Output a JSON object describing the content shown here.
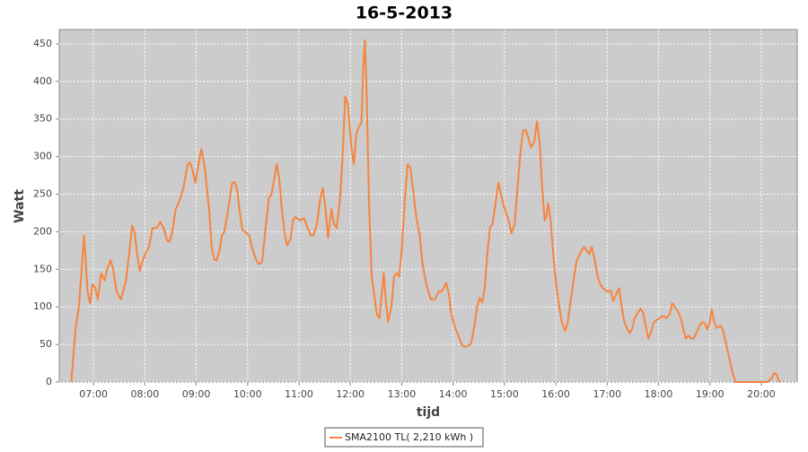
{
  "chart_data": {
    "type": "line",
    "title": "16-5-2013",
    "x_label": "tijd",
    "y_label": "Watt",
    "x": [
      "06:34",
      "06:39",
      "06:43",
      "06:49",
      "06:53",
      "06:56",
      "06:59",
      "07:02",
      "07:05",
      "07:09",
      "07:13",
      "07:16",
      "07:20",
      "07:23",
      "07:27",
      "07:32",
      "07:38",
      "07:42",
      "07:45",
      "07:48",
      "07:51",
      "07:54",
      "07:57",
      "08:01",
      "08:05",
      "08:09",
      "08:14",
      "08:18",
      "08:22",
      "08:26",
      "08:29",
      "08:32",
      "08:36",
      "08:40",
      "08:45",
      "08:50",
      "08:53",
      "08:56",
      "08:59",
      "09:03",
      "09:06",
      "09:10",
      "09:15",
      "09:18",
      "09:21",
      "09:24",
      "09:27",
      "09:30",
      "09:33",
      "09:38",
      "09:42",
      "09:45",
      "09:48",
      "09:51",
      "09:54",
      "09:57",
      "10:02",
      "10:05",
      "10:09",
      "10:13",
      "10:17",
      "10:21",
      "10:25",
      "10:28",
      "10:31",
      "10:34",
      "10:37",
      "10:40",
      "10:43",
      "10:46",
      "10:50",
      "10:53",
      "10:56",
      "11:01",
      "11:06",
      "11:10",
      "11:14",
      "11:17",
      "11:21",
      "11:25",
      "11:28",
      "11:31",
      "11:34",
      "11:38",
      "11:41",
      "11:44",
      "11:48",
      "11:51",
      "11:54",
      "11:57",
      "12:01",
      "12:04",
      "12:07",
      "12:10",
      "12:13",
      "12:15",
      "12:17",
      "12:19",
      "12:22",
      "12:25",
      "12:28",
      "12:31",
      "12:34",
      "12:37",
      "12:39",
      "12:41",
      "12:44",
      "12:48",
      "12:51",
      "12:54",
      "12:57",
      "13:00",
      "13:04",
      "13:07",
      "13:10",
      "13:14",
      "13:17",
      "13:21",
      "13:24",
      "13:27",
      "13:30",
      "13:34",
      "13:39",
      "13:43",
      "13:46",
      "13:49",
      "13:52",
      "13:55",
      "13:58",
      "14:03",
      "14:07",
      "14:10",
      "14:13",
      "14:18",
      "14:21",
      "14:25",
      "14:28",
      "14:31",
      "14:34",
      "14:37",
      "14:40",
      "14:43",
      "14:46",
      "14:50",
      "14:53",
      "14:56",
      "14:59",
      "15:02",
      "15:05",
      "15:08",
      "15:12",
      "15:15",
      "15:19",
      "15:22",
      "15:25",
      "15:28",
      "15:31",
      "15:35",
      "15:38",
      "15:41",
      "15:44",
      "15:47",
      "15:49",
      "15:51",
      "15:54",
      "15:57",
      "16:01",
      "16:04",
      "16:07",
      "16:11",
      "16:14",
      "16:17",
      "16:20",
      "16:24",
      "16:27",
      "16:30",
      "16:33",
      "16:36",
      "16:39",
      "16:42",
      "16:45",
      "16:49",
      "16:52",
      "16:55",
      "16:58",
      "17:01",
      "17:04",
      "17:07",
      "17:11",
      "17:14",
      "17:17",
      "17:20",
      "17:23",
      "17:26",
      "17:29",
      "17:32",
      "17:36",
      "17:39",
      "17:42",
      "17:45",
      "17:48",
      "17:51",
      "17:54",
      "17:57",
      "18:01",
      "18:05",
      "18:09",
      "18:13",
      "18:16",
      "18:19",
      "18:22",
      "18:26",
      "18:29",
      "18:32",
      "18:35",
      "18:38",
      "18:41",
      "18:44",
      "18:48",
      "18:51",
      "18:54",
      "18:57",
      "19:00",
      "19:02",
      "19:05",
      "19:08",
      "19:12",
      "19:15",
      "19:18",
      "19:21",
      "19:24",
      "19:27",
      "19:30",
      "19:53",
      "20:07",
      "20:12",
      "20:15",
      "20:18",
      "20:21"
    ],
    "series": [
      {
        "name": "SMA2100 TL( 2,210 kWh )",
        "color": "#f7843f",
        "values": [
          0,
          70,
          100,
          195,
          120,
          105,
          130,
          125,
          110,
          145,
          135,
          150,
          162,
          150,
          120,
          110,
          135,
          175,
          208,
          200,
          170,
          148,
          160,
          172,
          180,
          205,
          205,
          213,
          205,
          188,
          187,
          200,
          230,
          240,
          258,
          290,
          292,
          280,
          265,
          292,
          310,
          285,
          230,
          180,
          163,
          162,
          175,
          195,
          200,
          235,
          265,
          266,
          255,
          225,
          202,
          200,
          195,
          180,
          165,
          157,
          160,
          205,
          245,
          250,
          270,
          290,
          270,
          230,
          200,
          182,
          190,
          215,
          220,
          215,
          218,
          205,
          195,
          195,
          210,
          245,
          258,
          230,
          192,
          230,
          210,
          205,
          245,
          300,
          380,
          370,
          315,
          290,
          330,
          340,
          345,
          415,
          455,
          390,
          230,
          140,
          115,
          90,
          85,
          120,
          145,
          115,
          80,
          100,
          140,
          145,
          140,
          175,
          250,
          290,
          285,
          250,
          220,
          195,
          160,
          140,
          125,
          110,
          110,
          120,
          120,
          125,
          132,
          118,
          90,
          70,
          60,
          50,
          47,
          48,
          52,
          75,
          100,
          112,
          106,
          125,
          170,
          205,
          210,
          240,
          265,
          250,
          235,
          225,
          215,
          198,
          210,
          255,
          310,
          335,
          335,
          325,
          312,
          320,
          347,
          320,
          260,
          215,
          220,
          238,
          215,
          170,
          125,
          100,
          80,
          68,
          80,
          105,
          130,
          160,
          168,
          175,
          180,
          175,
          170,
          180,
          165,
          140,
          130,
          125,
          122,
          120,
          122,
          108,
          118,
          125,
          100,
          80,
          72,
          65,
          70,
          85,
          92,
          98,
          92,
          75,
          58,
          65,
          78,
          82,
          85,
          88,
          85,
          90,
          105,
          100,
          95,
          85,
          70,
          58,
          62,
          58,
          58,
          65,
          75,
          80,
          78,
          70,
          80,
          97,
          80,
          72,
          75,
          70,
          55,
          40,
          25,
          10,
          0,
          0,
          0,
          5,
          12,
          10,
          0
        ]
      }
    ],
    "xlim": [
      "06:20",
      "20:42"
    ],
    "xticks": [
      "07:00",
      "08:00",
      "09:00",
      "10:00",
      "11:00",
      "12:00",
      "13:00",
      "14:00",
      "15:00",
      "16:00",
      "17:00",
      "18:00",
      "19:00",
      "20:00"
    ],
    "ylim": [
      0,
      469
    ],
    "yticks": [
      0,
      50,
      100,
      150,
      200,
      250,
      300,
      350,
      400,
      450
    ],
    "grid": true,
    "legend": "bottom"
  }
}
